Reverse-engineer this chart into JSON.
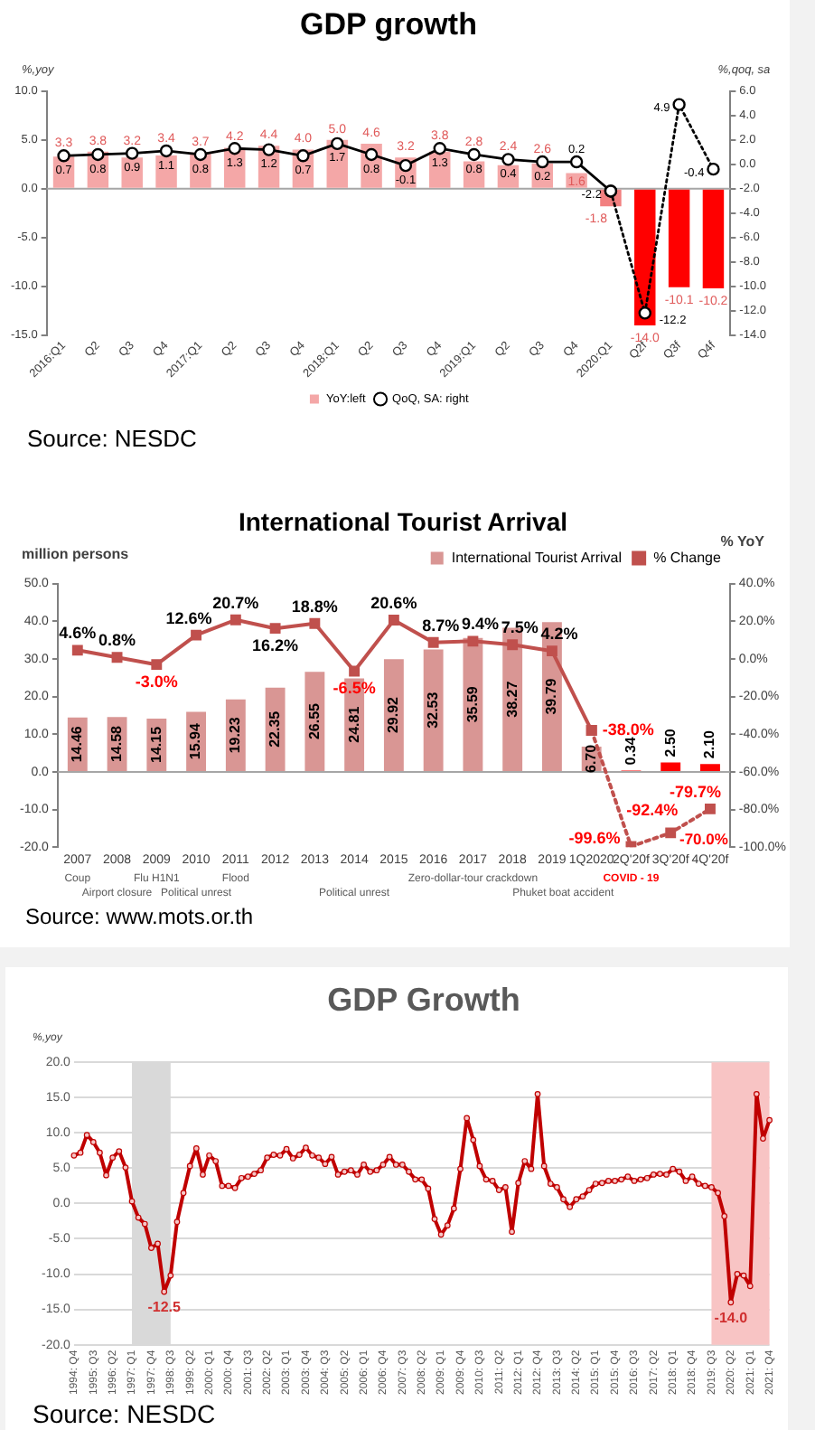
{
  "chart_data": [
    {
      "type": "bar",
      "title": "GDP growth",
      "ylabel": "%,yoy",
      "y2label": "%,qoq, sa",
      "categories": [
        "2016:Q1",
        "Q2",
        "Q3",
        "Q4",
        "2017:Q1",
        "Q2",
        "Q3",
        "Q4",
        "2018:Q1",
        "Q2",
        "Q3",
        "Q4",
        "2019:Q1",
        "Q2",
        "Q3",
        "Q4",
        "2020:Q1",
        "Q2f",
        "Q3f",
        "Q4f"
      ],
      "series": [
        {
          "name": "YoY:left",
          "type": "bar",
          "colors": [
            "#f4a7a7",
            "#f4a7a7",
            "#f4a7a7",
            "#f4a7a7",
            "#f4a7a7",
            "#f4a7a7",
            "#f4a7a7",
            "#f4a7a7",
            "#f4a7a7",
            "#f4a7a7",
            "#f4a7a7",
            "#f4a7a7",
            "#f4a7a7",
            "#f4a7a7",
            "#f4a7a7",
            "#f4a7a7",
            "#f28080",
            "#ff0000",
            "#ff0000",
            "#ff0000"
          ],
          "values": [
            3.3,
            3.8,
            3.2,
            3.4,
            3.7,
            4.2,
            4.4,
            4.0,
            5.0,
            4.6,
            3.2,
            3.8,
            2.8,
            2.4,
            2.6,
            1.6,
            -1.8,
            -14.0,
            -10.1,
            -10.2
          ],
          "value_labels": [
            "3.3",
            "3.8",
            "3.2",
            "3.4",
            "3.7",
            "4.2",
            "4.4",
            "4.0",
            "5.0",
            "4.6",
            "3.2",
            "3.8",
            "2.8",
            "2.4",
            "2.6",
            "1.6",
            "-1.8",
            "-14.0",
            "-10.1",
            "-10.2"
          ]
        },
        {
          "name": "QoQ, SA: right",
          "type": "line",
          "axis": "y2",
          "color": "#000000",
          "values": [
            0.7,
            0.8,
            0.9,
            1.1,
            0.8,
            1.3,
            1.2,
            0.7,
            1.7,
            0.8,
            -0.1,
            1.3,
            0.8,
            0.4,
            0.2,
            0.2,
            -2.2,
            null,
            null,
            null
          ],
          "value_labels": [
            "0.7",
            "0.8",
            "0.9",
            "1.1",
            "0.8",
            "1.3",
            "1.2",
            "0.7",
            "1.7",
            "0.8",
            "-0.1",
            "1.3",
            "0.8",
            "0.4",
            "0.2",
            "0.2",
            "-2.2",
            null,
            null,
            null
          ]
        },
        {
          "type": "line",
          "axis": "y2",
          "color": "#000000",
          "line_style": "dotted",
          "values": [
            null,
            null,
            null,
            null,
            null,
            null,
            null,
            null,
            null,
            null,
            null,
            null,
            null,
            null,
            null,
            null,
            -2.2,
            -12.2,
            4.9,
            -0.4
          ],
          "value_labels": [
            null,
            null,
            null,
            null,
            null,
            null,
            null,
            null,
            null,
            null,
            null,
            null,
            null,
            null,
            null,
            null,
            null,
            "-12.2",
            "4.9",
            "-0.4"
          ]
        }
      ],
      "ylim": [
        -15,
        10
      ],
      "yticks": [
        {
          "value": -15,
          "label": "-15.0"
        },
        {
          "value": -10,
          "label": "-10.0"
        },
        {
          "value": -5,
          "label": "-5.0"
        },
        {
          "value": 0,
          "label": "0.0"
        },
        {
          "value": 5,
          "label": "5.0"
        },
        {
          "value": 10,
          "label": "10.0"
        }
      ],
      "y2lim": [
        -14,
        6
      ],
      "y2ticks": [
        {
          "value": -14,
          "label": "-14.0"
        },
        {
          "value": -12,
          "label": "-12.0"
        },
        {
          "value": -10,
          "label": "-10.0"
        },
        {
          "value": -8,
          "label": "-8.0"
        },
        {
          "value": -6,
          "label": "-6.0"
        },
        {
          "value": -4,
          "label": "-4.0"
        },
        {
          "value": -2,
          "label": "-2.0"
        },
        {
          "value": 0,
          "label": "0.0"
        },
        {
          "value": 2,
          "label": "2.0"
        },
        {
          "value": 4,
          "label": "4.0"
        },
        {
          "value": 6,
          "label": "6.0"
        }
      ],
      "marker": "circle",
      "legend": "bottom",
      "annotations": [
        "Source: NESDC"
      ]
    },
    {
      "type": "bar",
      "title": "International Tourist Arrival",
      "ylabel": "million persons",
      "y2label": "% YoY",
      "categories": [
        "2007",
        "2008",
        "2009",
        "2010",
        "2011",
        "2012",
        "2013",
        "2014",
        "2015",
        "2016",
        "2017",
        "2018",
        "2019",
        "1Q2020",
        "2Q'20f",
        "3Q'20f",
        "4Q'20f"
      ],
      "series": [
        {
          "name": "International Tourist Arrival",
          "type": "bar",
          "colors": [
            "#d99694",
            "#d99694",
            "#d99694",
            "#d99694",
            "#d99694",
            "#d99694",
            "#d99694",
            "#d99694",
            "#d99694",
            "#d99694",
            "#d99694",
            "#d99694",
            "#d99694",
            "#d99694",
            "#ff0000",
            "#ff0000",
            "#ff0000"
          ],
          "values": [
            14.46,
            14.58,
            14.15,
            15.94,
            19.23,
            22.35,
            26.55,
            24.81,
            29.92,
            32.53,
            35.59,
            38.27,
            39.79,
            6.7,
            0.34,
            2.5,
            2.1
          ],
          "value_labels": [
            "14.46",
            "14.58",
            "14.15",
            "15.94",
            "19.23",
            "22.35",
            "26.55",
            "24.81",
            "29.92",
            "32.53",
            "35.59",
            "38.27",
            "39.79",
            "6.70",
            "0.34",
            "2.50",
            "2.10"
          ]
        },
        {
          "name": "% Change",
          "type": "line",
          "axis": "y2",
          "color": "#c0504d",
          "values": [
            4.6,
            0.8,
            -3.0,
            12.6,
            20.7,
            16.2,
            18.8,
            -6.5,
            20.6,
            8.7,
            9.4,
            7.5,
            4.2,
            -38.0,
            null,
            null,
            null
          ],
          "value_labels": [
            "4.6%",
            "0.8%",
            "-3.0%",
            "12.6%",
            "20.7%",
            "16.2%",
            "18.8%",
            "-6.5%",
            "20.6%",
            "8.7%",
            "9.4%",
            "7.5%",
            "4.2%",
            "-38.0%",
            null,
            null,
            null
          ]
        },
        {
          "type": "line",
          "axis": "y2",
          "color": "#c0504d",
          "line_style": "dotted",
          "values": [
            null,
            null,
            null,
            null,
            null,
            null,
            null,
            null,
            null,
            null,
            null,
            null,
            null,
            -38.0,
            -99.6,
            -92.4,
            -79.7
          ],
          "value_labels": [
            null,
            null,
            null,
            null,
            null,
            null,
            null,
            null,
            null,
            null,
            null,
            null,
            null,
            null,
            "-99.6%",
            "-92.4%",
            "-79.7%"
          ]
        }
      ],
      "ylim": [
        -20,
        50
      ],
      "yticks": [
        {
          "value": -20,
          "label": "-20.0"
        },
        {
          "value": -10,
          "label": "-10.0"
        },
        {
          "value": 0,
          "label": "0.0"
        },
        {
          "value": 10,
          "label": "10.0"
        },
        {
          "value": 20,
          "label": "20.0"
        },
        {
          "value": 30,
          "label": "30.0"
        },
        {
          "value": 40,
          "label": "40.0"
        },
        {
          "value": 50,
          "label": "50.0"
        }
      ],
      "y2lim": [
        -100,
        40
      ],
      "y2ticks": [
        {
          "value": -100,
          "label": "-100.0%"
        },
        {
          "value": -80,
          "label": "-80.0%"
        },
        {
          "value": -60,
          "label": "-60.0%"
        },
        {
          "value": -40,
          "label": "-40.0%"
        },
        {
          "value": -20,
          "label": "-20.0%"
        },
        {
          "value": 0,
          "label": "0.0%"
        },
        {
          "value": 20,
          "label": "20.0%"
        },
        {
          "value": 40,
          "label": "40.0%"
        }
      ],
      "marker": "square",
      "legend": "top right",
      "annotations": [
        "-70.0%",
        "Coup",
        "Airport closure",
        "Flu H1N1",
        "Political unrest",
        "Flood",
        "Political unrest",
        "Zero-dollar-tour crackdown",
        "Phuket boat accident",
        "COVID - 19",
        "Source: www.mots.or.th"
      ]
    },
    {
      "type": "line",
      "title": "GDP Growth",
      "ylabel": "%,yoy",
      "categories": [
        "1994: Q4",
        null,
        null,
        "1995: Q3",
        null,
        null,
        "1996: Q2",
        null,
        null,
        "1997: Q1",
        null,
        null,
        "1997: Q4",
        null,
        null,
        "1998: Q3",
        null,
        null,
        "1999: Q2",
        null,
        null,
        "2000: Q1",
        null,
        null,
        "2000: Q4",
        null,
        null,
        "2001: Q3",
        null,
        null,
        "2002: Q2",
        null,
        null,
        "2003: Q1",
        null,
        null,
        "2003: Q4",
        null,
        null,
        "2004: Q3",
        null,
        null,
        "2005: Q2",
        null,
        null,
        "2006: Q1",
        null,
        null,
        "2006: Q4",
        null,
        null,
        "2007: Q3",
        null,
        null,
        "2008: Q2",
        null,
        null,
        "2009: Q1",
        null,
        null,
        "2009: Q4",
        null,
        null,
        "2010: Q3",
        null,
        null,
        "2011: Q2",
        null,
        null,
        "2012: Q1",
        null,
        null,
        "2012: Q4",
        null,
        null,
        "2013: Q3",
        null,
        null,
        "2014: Q2",
        null,
        null,
        "2015: Q1",
        null,
        null,
        "2015: Q4",
        null,
        null,
        "2016: Q3",
        null,
        null,
        "2017: Q2",
        null,
        null,
        "2018: Q1",
        null,
        null,
        "2018: Q4",
        null,
        null,
        "2019: Q3",
        null,
        null,
        "2020: Q2",
        null,
        null,
        "2021: Q1",
        null,
        null,
        "2021: Q4"
      ],
      "series": [
        {
          "color": "#c00000",
          "values": [
            6.8,
            7.2,
            9.7,
            8.7,
            7.2,
            4.0,
            6.5,
            7.4,
            5.1,
            0.3,
            -2.0,
            -2.9,
            -6.3,
            -5.7,
            -12.5,
            -10.2,
            -2.6,
            1.5,
            5.3,
            7.8,
            4.1,
            6.8,
            6.0,
            2.5,
            2.5,
            2.2,
            3.6,
            3.8,
            4.2,
            4.7,
            6.5,
            6.9,
            6.8,
            7.7,
            6.4,
            6.9,
            7.9,
            6.8,
            6.5,
            5.6,
            6.6,
            4.1,
            4.5,
            4.7,
            4.1,
            5.5,
            4.5,
            4.7,
            5.5,
            6.6,
            5.5,
            5.5,
            4.5,
            3.4,
            3.4,
            2.1,
            -2.2,
            -4.4,
            -3.1,
            -0.7,
            4.9,
            12.1,
            9.0,
            5.3,
            3.4,
            3.2,
            1.9,
            2.3,
            -4.0,
            2.9,
            6.0,
            4.9,
            15.5,
            5.3,
            2.8,
            2.3,
            0.6,
            -0.5,
            0.6,
            1.0,
            1.9,
            2.8,
            2.9,
            3.2,
            3.2,
            3.4,
            3.8,
            3.2,
            3.4,
            3.6,
            4.1,
            4.2,
            4.1,
            4.9,
            4.5,
            3.2,
            3.8,
            2.8,
            2.5,
            2.3,
            1.5,
            -1.8,
            -14.0,
            -10.0,
            -10.2,
            -11.7,
            15.5,
            9.2,
            11.8
          ],
          "value_labels": [
            null,
            null,
            null,
            null,
            null,
            null,
            null,
            null,
            null,
            null,
            null,
            null,
            null,
            null,
            "-12.5",
            null,
            null,
            null,
            null,
            null,
            null,
            null,
            null,
            null,
            null,
            null,
            null,
            null,
            null,
            null,
            null,
            null,
            null,
            null,
            null,
            null,
            null,
            null,
            null,
            null,
            null,
            null,
            null,
            null,
            null,
            null,
            null,
            null,
            null,
            null,
            null,
            null,
            null,
            null,
            null,
            null,
            null,
            null,
            null,
            null,
            null,
            null,
            null,
            null,
            null,
            null,
            null,
            null,
            null,
            null,
            null,
            null,
            null,
            null,
            null,
            null,
            null,
            null,
            null,
            null,
            null,
            null,
            null,
            null,
            null,
            null,
            null,
            null,
            null,
            null,
            null,
            null,
            null,
            null,
            null,
            null,
            null,
            null,
            null,
            null,
            null,
            null,
            "-14.0",
            null,
            null,
            null,
            null,
            null,
            null
          ]
        }
      ],
      "ylim": [
        -20,
        20
      ],
      "yticks": [
        {
          "value": -20,
          "label": "-20.0"
        },
        {
          "value": -15,
          "label": "-15.0"
        },
        {
          "value": -10,
          "label": "-10.0"
        },
        {
          "value": -5,
          "label": "-5.0"
        },
        {
          "value": 0,
          "label": "0.0"
        },
        {
          "value": 5,
          "label": "5.0"
        },
        {
          "value": 10,
          "label": "10.0"
        },
        {
          "value": 15,
          "label": "15.0"
        },
        {
          "value": 20,
          "label": "20.0"
        }
      ],
      "grid": "y",
      "marker": "circle",
      "bands": [
        {
          "axis": "x",
          "from": "1997: Q1",
          "to": "1998: Q3",
          "color": "#d9d9d9"
        },
        {
          "axis": "x",
          "from": "2019: Q3",
          "to": "2021: Q4",
          "color": "#f8c4c4"
        }
      ],
      "annotations": [
        "Source: NESDC"
      ]
    }
  ]
}
